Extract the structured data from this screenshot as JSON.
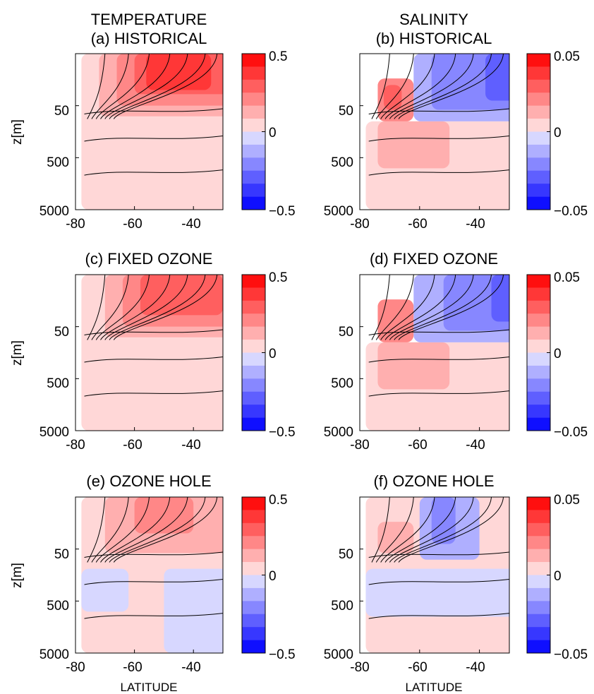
{
  "column_headers": [
    "TEMPERATURE",
    "SALINITY"
  ],
  "xlabel": "LATITUDE",
  "ylabel": "z[m]",
  "palette": {
    "positive": [
      "#ffd7d7",
      "#ffafaf",
      "#ff8787",
      "#ff5f5f",
      "#ff3737",
      "#ff0f0f"
    ],
    "negative": [
      "#d7d7ff",
      "#afafff",
      "#8787ff",
      "#5f5fff",
      "#3737ff",
      "#0f0fff"
    ]
  },
  "chart_data": [
    {
      "type": "heatmap",
      "variable": "temperature",
      "title": "(a) HISTORICAL",
      "x_ticks": [
        -80,
        -60,
        -40
      ],
      "y_ticks": [
        "50",
        "500",
        "5000"
      ],
      "y_scale": "log",
      "xlim": [
        -80,
        -30
      ],
      "ylim": [
        5,
        5000
      ],
      "colorbar": {
        "min": -0.5,
        "max": 0.5,
        "ticks": [
          "0.5",
          "0",
          "−0.5"
        ],
        "levels": 12
      },
      "anomaly_fields": [
        {
          "value": 0.04,
          "lat": [
            -78,
            -28
          ],
          "z": [
            0,
            5000
          ]
        },
        {
          "value": 0.12,
          "lat": [
            -72,
            -28
          ],
          "z": [
            0,
            80
          ]
        },
        {
          "value": 0.2,
          "lat": [
            -66,
            -28
          ],
          "z": [
            0,
            50
          ]
        },
        {
          "value": 0.28,
          "lat": [
            -60,
            -28
          ],
          "z": [
            0,
            30
          ]
        },
        {
          "value": 0.38,
          "lat": [
            -56,
            -34
          ],
          "z": [
            0,
            25
          ]
        }
      ],
      "has_contours": true
    },
    {
      "type": "heatmap",
      "variable": "salinity",
      "title": "(b) HISTORICAL",
      "x_ticks": [
        -80,
        -60,
        -40
      ],
      "y_ticks": [
        "50",
        "500",
        "5000"
      ],
      "y_scale": "log",
      "xlim": [
        -80,
        -30
      ],
      "ylim": [
        5,
        5000
      ],
      "colorbar": {
        "min": -0.05,
        "max": 0.05,
        "ticks": [
          "0.05",
          "0",
          "−0.05"
        ],
        "levels": 12
      },
      "anomaly_fields": [
        {
          "value": 0.004,
          "lat": [
            -78,
            -28
          ],
          "z": [
            100,
            5000
          ]
        },
        {
          "value": 0.012,
          "lat": [
            -74,
            -50
          ],
          "z": [
            100,
            800
          ]
        },
        {
          "value": 0.02,
          "lat": [
            -74,
            -62
          ],
          "z": [
            15,
            100
          ]
        },
        {
          "value": 0.03,
          "lat": [
            -72,
            -66
          ],
          "z": [
            20,
            60
          ]
        },
        {
          "value": -0.01,
          "lat": [
            -62,
            -28
          ],
          "z": [
            0,
            100
          ]
        },
        {
          "value": -0.02,
          "lat": [
            -56,
            -28
          ],
          "z": [
            0,
            60
          ]
        },
        {
          "value": -0.03,
          "lat": [
            -38,
            -28
          ],
          "z": [
            0,
            40
          ]
        }
      ],
      "has_contours": true
    },
    {
      "type": "heatmap",
      "variable": "temperature",
      "title": "(c) FIXED OZONE",
      "x_ticks": [
        -80,
        -60,
        -40
      ],
      "y_ticks": [
        "50",
        "500",
        "5000"
      ],
      "y_scale": "log",
      "xlim": [
        -80,
        -30
      ],
      "ylim": [
        5,
        5000
      ],
      "colorbar": {
        "min": -0.5,
        "max": 0.5,
        "ticks": [
          "0.5",
          "0",
          "−0.5"
        ],
        "levels": 12
      },
      "anomaly_fields": [
        {
          "value": 0.04,
          "lat": [
            -78,
            -28
          ],
          "z": [
            0,
            5000
          ]
        },
        {
          "value": 0.12,
          "lat": [
            -70,
            -28
          ],
          "z": [
            0,
            80
          ]
        },
        {
          "value": 0.2,
          "lat": [
            -64,
            -28
          ],
          "z": [
            0,
            50
          ]
        },
        {
          "value": 0.28,
          "lat": [
            -58,
            -30
          ],
          "z": [
            0,
            30
          ]
        }
      ],
      "has_contours": true
    },
    {
      "type": "heatmap",
      "variable": "salinity",
      "title": "(d) FIXED OZONE",
      "x_ticks": [
        -80,
        -60,
        -40
      ],
      "y_ticks": [
        "50",
        "500",
        "5000"
      ],
      "y_scale": "log",
      "xlim": [
        -80,
        -30
      ],
      "ylim": [
        5,
        5000
      ],
      "colorbar": {
        "min": -0.05,
        "max": 0.05,
        "ticks": [
          "0.05",
          "0",
          "−0.05"
        ],
        "levels": 12
      },
      "anomaly_fields": [
        {
          "value": 0.004,
          "lat": [
            -78,
            -28
          ],
          "z": [
            100,
            5000
          ]
        },
        {
          "value": 0.012,
          "lat": [
            -74,
            -50
          ],
          "z": [
            100,
            800
          ]
        },
        {
          "value": 0.02,
          "lat": [
            -74,
            -62
          ],
          "z": [
            15,
            100
          ]
        },
        {
          "value": -0.01,
          "lat": [
            -62,
            -28
          ],
          "z": [
            0,
            100
          ]
        },
        {
          "value": -0.02,
          "lat": [
            -52,
            -28
          ],
          "z": [
            0,
            60
          ]
        },
        {
          "value": -0.03,
          "lat": [
            -36,
            -28
          ],
          "z": [
            0,
            40
          ]
        }
      ],
      "has_contours": true
    },
    {
      "type": "heatmap",
      "variable": "temperature",
      "title": "(e) OZONE HOLE",
      "x_ticks": [
        -80,
        -60,
        -40
      ],
      "y_ticks": [
        "50",
        "500",
        "5000"
      ],
      "y_scale": "log",
      "xlim": [
        -80,
        -30
      ],
      "ylim": [
        5,
        5000
      ],
      "colorbar": {
        "min": -0.5,
        "max": 0.5,
        "ticks": [
          "0.5",
          "0",
          "−0.5"
        ],
        "levels": 12
      },
      "anomaly_fields": [
        {
          "value": 0.04,
          "lat": [
            -78,
            -28
          ],
          "z": [
            0,
            5000
          ]
        },
        {
          "value": -0.04,
          "lat": [
            -78,
            -62
          ],
          "z": [
            120,
            800
          ]
        },
        {
          "value": -0.04,
          "lat": [
            -50,
            -28
          ],
          "z": [
            120,
            5000
          ]
        },
        {
          "value": 0.12,
          "lat": [
            -70,
            -28
          ],
          "z": [
            0,
            60
          ]
        },
        {
          "value": 0.2,
          "lat": [
            -60,
            -40
          ],
          "z": [
            0,
            25
          ]
        }
      ],
      "has_contours": true
    },
    {
      "type": "heatmap",
      "variable": "salinity",
      "title": "(f) OZONE HOLE",
      "x_ticks": [
        -80,
        -60,
        -40
      ],
      "y_ticks": [
        "50",
        "500",
        "5000"
      ],
      "y_scale": "log",
      "xlim": [
        -80,
        -30
      ],
      "ylim": [
        5,
        5000
      ],
      "colorbar": {
        "min": -0.05,
        "max": 0.05,
        "ticks": [
          "0.05",
          "0",
          "−0.05"
        ],
        "levels": 12
      },
      "anomaly_fields": [
        {
          "value": 0.004,
          "lat": [
            -78,
            -28
          ],
          "z": [
            0,
            5000
          ]
        },
        {
          "value": -0.004,
          "lat": [
            -78,
            -28
          ],
          "z": [
            120,
            1000
          ]
        },
        {
          "value": 0.012,
          "lat": [
            -74,
            -62
          ],
          "z": [
            15,
            60
          ]
        },
        {
          "value": -0.01,
          "lat": [
            -60,
            -40
          ],
          "z": [
            0,
            80
          ]
        },
        {
          "value": -0.02,
          "lat": [
            -56,
            -48
          ],
          "z": [
            0,
            40
          ]
        }
      ],
      "has_contours": true
    }
  ]
}
